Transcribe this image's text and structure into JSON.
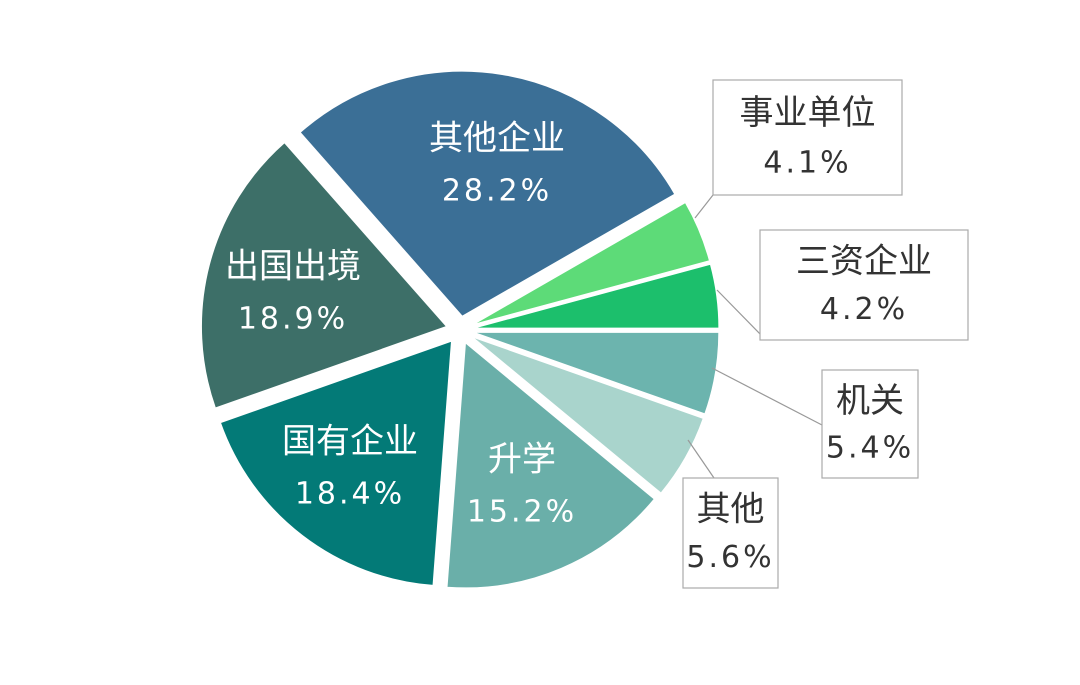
{
  "chart_data": {
    "type": "pie",
    "categories": [
      "机关",
      "其他",
      "升学",
      "国有企业",
      "出国出境",
      "其他企业",
      "事业单位",
      "三资企业"
    ],
    "values": [
      5.4,
      5.6,
      15.2,
      18.4,
      18.9,
      28.2,
      4.1,
      4.2
    ],
    "value_labels": [
      "5.4%",
      "5.6%",
      "15.2%",
      "18.4%",
      "18.9%",
      "28.2%",
      "4.1%",
      "4.2%"
    ],
    "colors": [
      "#6cb4ae",
      "#a9d4cc",
      "#6aafa9",
      "#037a77",
      "#3d6f68",
      "#3b6f96",
      "#5ddb78",
      "#1cbf6c"
    ]
  }
}
